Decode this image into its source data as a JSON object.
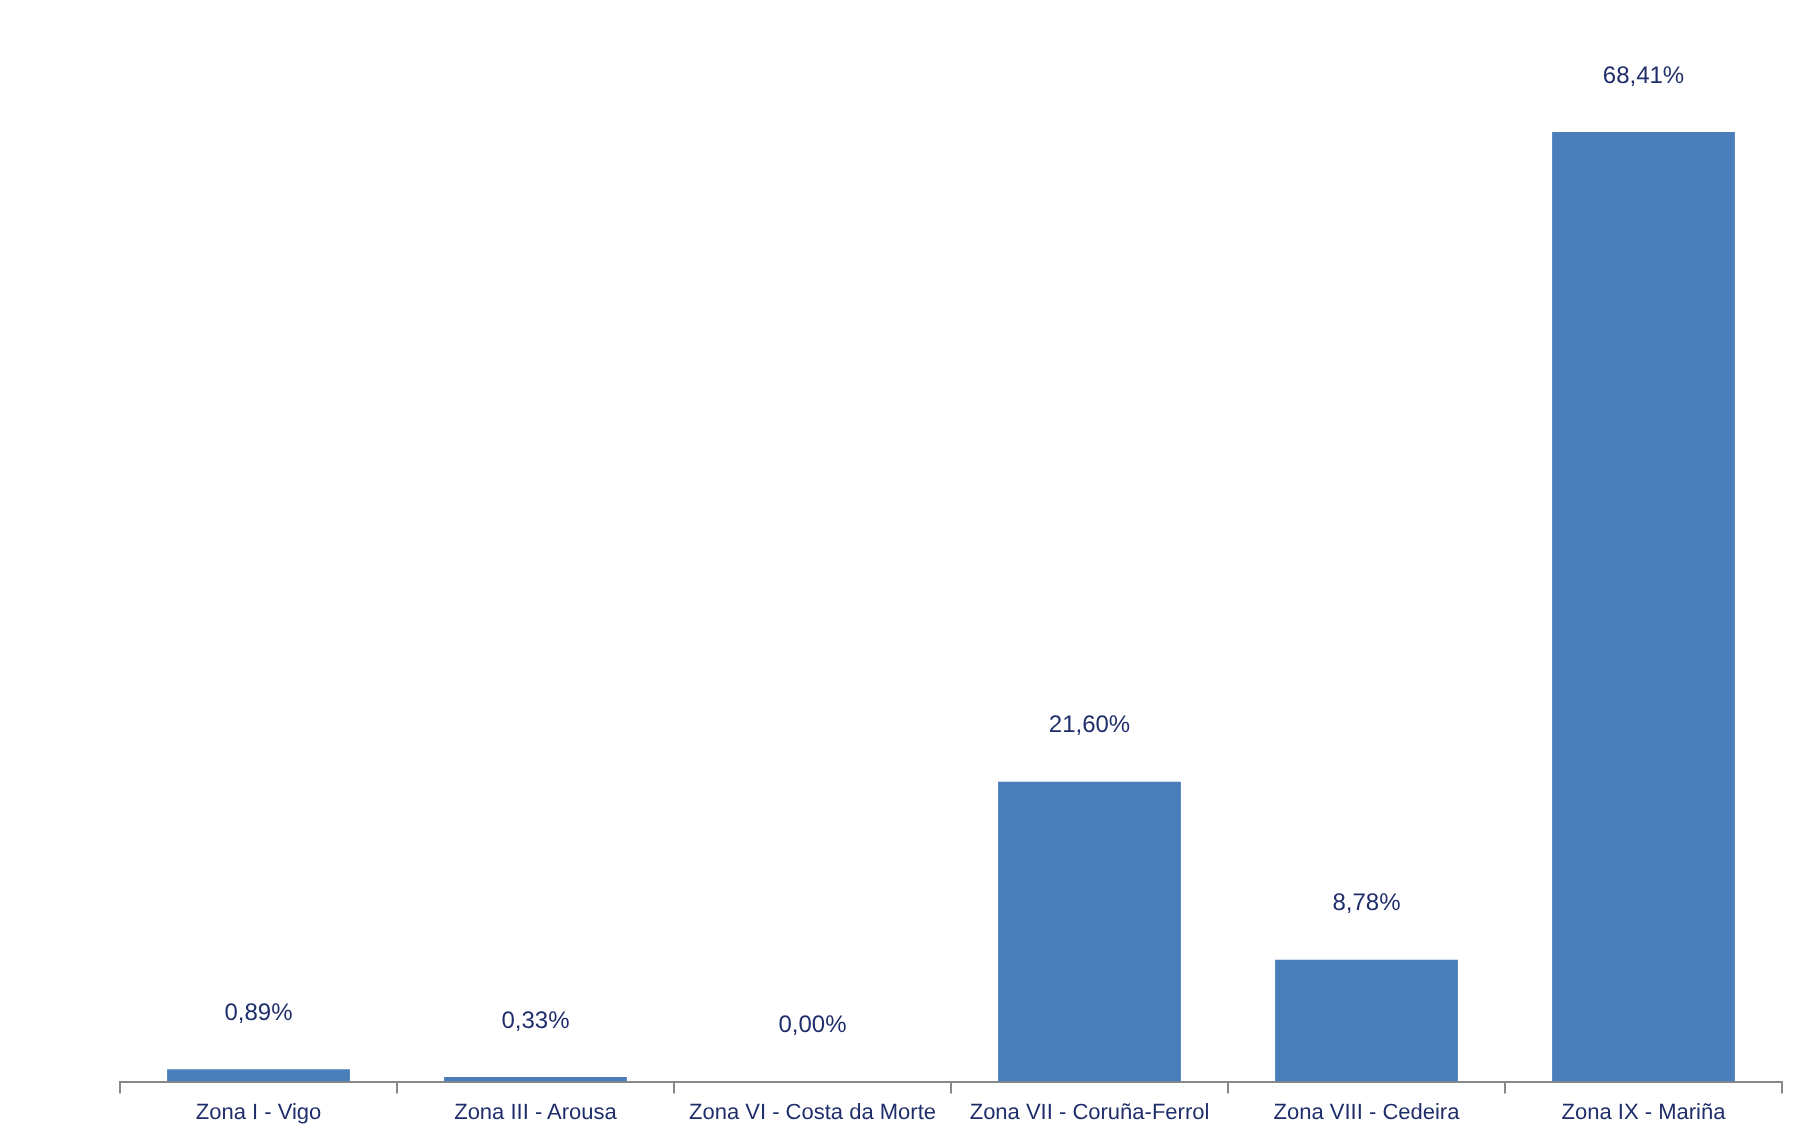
{
  "chart_data": {
    "type": "bar",
    "categories": [
      "Zona I - Vigo",
      "Zona III - Arousa",
      "Zona VI - Costa da Morte",
      "Zona VII - Coruña-Ferrol",
      "Zona VIII - Cedeira",
      "Zona IX - Mariña"
    ],
    "values": [
      0.89,
      0.33,
      0.0,
      21.6,
      8.78,
      68.41
    ],
    "value_labels": [
      "0,89%",
      "0,33%",
      "0,00%",
      "21,60%",
      "8,78%",
      "68,41%"
    ],
    "color": "#4a7ebb"
  }
}
